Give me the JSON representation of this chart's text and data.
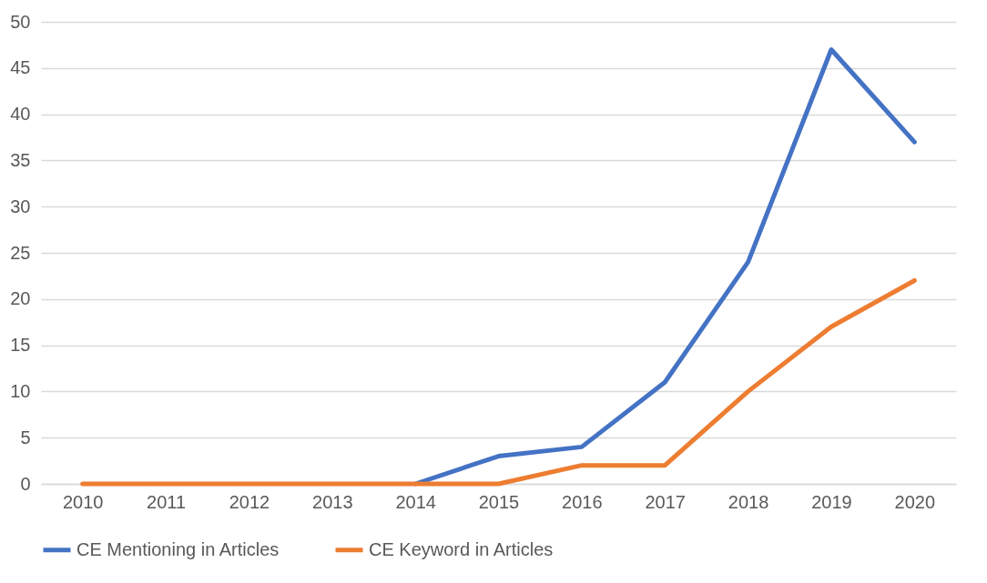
{
  "chart_data": {
    "type": "line",
    "categories": [
      "2010",
      "2011",
      "2012",
      "2013",
      "2014",
      "2015",
      "2016",
      "2017",
      "2018",
      "2019",
      "2020"
    ],
    "series": [
      {
        "name": "CE Mentioning in Articles",
        "color": "#4472c4",
        "values": [
          null,
          null,
          null,
          null,
          0,
          3,
          4,
          11,
          24,
          47,
          37
        ]
      },
      {
        "name": "CE Keyword in Articles",
        "color": "#ed7d31",
        "values": [
          0,
          0,
          0,
          0,
          0,
          0,
          2,
          2,
          10,
          17,
          22
        ]
      }
    ],
    "ylim": [
      0,
      50
    ],
    "yticks": [
      0,
      5,
      10,
      15,
      20,
      25,
      30,
      35,
      40,
      45,
      50
    ],
    "grid": "y",
    "legend": "bottom"
  }
}
